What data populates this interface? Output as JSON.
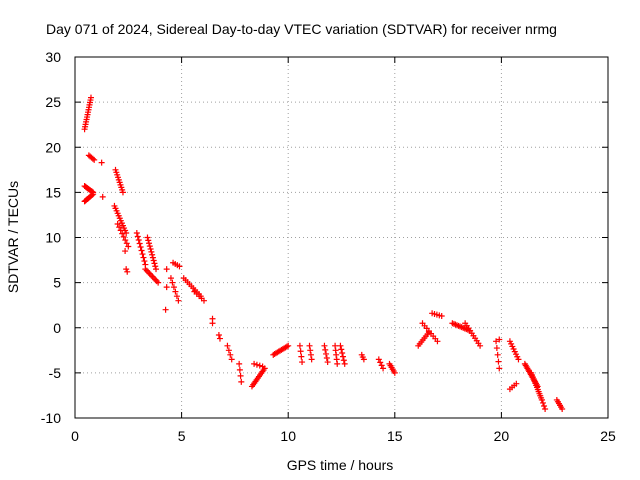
{
  "chart_data": {
    "type": "scatter",
    "title": "Day 071 of 2024, Sidereal Day-to-day VTEC variation (SDTVAR) for receiver nrmg",
    "xlabel": "GPS time / hours",
    "ylabel": "SDTVAR / TECUs",
    "xlim": [
      0,
      25
    ],
    "ylim": [
      -10,
      30
    ],
    "x_ticks": [
      0,
      5,
      10,
      15,
      20,
      25
    ],
    "y_ticks": [
      -10,
      -5,
      0,
      5,
      10,
      15,
      20,
      25,
      30
    ],
    "grid": true,
    "marker": "plus",
    "color": "#ff0000",
    "segments": [
      {
        "x0": 0.45,
        "x1": 0.75,
        "y0": 22.0,
        "y1": 25.5,
        "n": 14
      },
      {
        "x0": 0.45,
        "x1": 0.85,
        "y0": 14.0,
        "y1": 14.8,
        "n": 10
      },
      {
        "x0": 0.45,
        "x1": 0.85,
        "y0": 15.7,
        "y1": 15.0,
        "n": 10
      },
      {
        "x0": 0.65,
        "x1": 0.9,
        "y0": 19.1,
        "y1": 18.6,
        "n": 5
      },
      {
        "x0": 1.9,
        "x1": 2.25,
        "y0": 17.5,
        "y1": 15.0,
        "n": 10
      },
      {
        "x0": 1.85,
        "x1": 2.4,
        "y0": 13.5,
        "y1": 10.5,
        "n": 12
      },
      {
        "x0": 2.0,
        "x1": 2.5,
        "y0": 11.5,
        "y1": 9.0,
        "n": 8
      },
      {
        "x0": 2.9,
        "x1": 3.3,
        "y0": 10.5,
        "y1": 7.0,
        "n": 10
      },
      {
        "x0": 3.4,
        "x1": 3.8,
        "y0": 10.0,
        "y1": 6.5,
        "n": 12
      },
      {
        "x0": 3.3,
        "x1": 3.9,
        "y0": 6.5,
        "y1": 5.0,
        "n": 10
      },
      {
        "x0": 4.6,
        "x1": 4.9,
        "y0": 7.2,
        "y1": 6.8,
        "n": 4
      },
      {
        "x0": 4.5,
        "x1": 4.85,
        "y0": 5.5,
        "y1": 3.0,
        "n": 6
      },
      {
        "x0": 5.1,
        "x1": 5.9,
        "y0": 5.5,
        "y1": 3.5,
        "n": 10
      },
      {
        "x0": 5.6,
        "x1": 6.05,
        "y0": 4.0,
        "y1": 3.0,
        "n": 5
      },
      {
        "x0": 7.15,
        "x1": 7.35,
        "y0": -2.0,
        "y1": -3.5,
        "n": 4
      },
      {
        "x0": 7.7,
        "x1": 7.8,
        "y0": -4.0,
        "y1": -6.0,
        "n": 4
      },
      {
        "x0": 8.3,
        "x1": 8.9,
        "y0": -6.5,
        "y1": -4.5,
        "n": 12
      },
      {
        "x0": 8.4,
        "x1": 8.8,
        "y0": -4.0,
        "y1": -4.3,
        "n": 4
      },
      {
        "x0": 9.3,
        "x1": 10.0,
        "y0": -3.0,
        "y1": -2.0,
        "n": 12
      },
      {
        "x0": 10.55,
        "x1": 10.65,
        "y0": -2.0,
        "y1": -3.8,
        "n": 4
      },
      {
        "x0": 11.0,
        "x1": 11.1,
        "y0": -2.0,
        "y1": -3.5,
        "n": 4
      },
      {
        "x0": 11.7,
        "x1": 11.85,
        "y0": -2.0,
        "y1": -3.8,
        "n": 5
      },
      {
        "x0": 12.2,
        "x1": 12.3,
        "y0": -2.0,
        "y1": -4.0,
        "n": 5
      },
      {
        "x0": 12.45,
        "x1": 12.65,
        "y0": -2.0,
        "y1": -4.0,
        "n": 6
      },
      {
        "x0": 13.45,
        "x1": 13.55,
        "y0": -3.0,
        "y1": -3.5,
        "n": 3
      },
      {
        "x0": 14.25,
        "x1": 14.45,
        "y0": -3.5,
        "y1": -4.5,
        "n": 4
      },
      {
        "x0": 14.75,
        "x1": 15.0,
        "y0": -4.0,
        "y1": -5.0,
        "n": 6
      },
      {
        "x0": 16.1,
        "x1": 16.6,
        "y0": -2.0,
        "y1": -0.5,
        "n": 8
      },
      {
        "x0": 16.3,
        "x1": 17.0,
        "y0": 0.5,
        "y1": -1.5,
        "n": 8
      },
      {
        "x0": 16.75,
        "x1": 17.2,
        "y0": 1.6,
        "y1": 1.3,
        "n": 5
      },
      {
        "x0": 17.7,
        "x1": 18.5,
        "y0": 0.5,
        "y1": -0.3,
        "n": 12
      },
      {
        "x0": 18.3,
        "x1": 19.0,
        "y0": 0.5,
        "y1": -2.0,
        "n": 10
      },
      {
        "x0": 19.75,
        "x1": 19.9,
        "y0": -1.5,
        "y1": -4.5,
        "n": 5
      },
      {
        "x0": 20.4,
        "x1": 20.8,
        "y0": -1.5,
        "y1": -3.5,
        "n": 8
      },
      {
        "x0": 20.4,
        "x1": 20.7,
        "y0": -6.8,
        "y1": -6.2,
        "n": 4
      },
      {
        "x0": 21.1,
        "x1": 21.7,
        "y0": -4.0,
        "y1": -6.5,
        "n": 16
      },
      {
        "x0": 21.4,
        "x1": 21.9,
        "y0": -5.0,
        "y1": -8.0,
        "n": 14
      },
      {
        "x0": 21.9,
        "x1": 22.05,
        "y0": -8.0,
        "y1": -9.0,
        "n": 4
      },
      {
        "x0": 22.6,
        "x1": 22.85,
        "y0": -8.0,
        "y1": -9.0,
        "n": 6
      }
    ],
    "points": [
      {
        "x": 1.25,
        "y": 18.3
      },
      {
        "x": 1.3,
        "y": 14.5
      },
      {
        "x": 2.35,
        "y": 8.5
      },
      {
        "x": 2.4,
        "y": 6.5
      },
      {
        "x": 2.45,
        "y": 6.2
      },
      {
        "x": 4.3,
        "y": 6.5
      },
      {
        "x": 4.3,
        "y": 4.5
      },
      {
        "x": 4.25,
        "y": 2.0
      },
      {
        "x": 6.45,
        "y": 1.0
      },
      {
        "x": 6.45,
        "y": 0.5
      },
      {
        "x": 6.75,
        "y": -0.8
      },
      {
        "x": 6.8,
        "y": -1.2
      },
      {
        "x": 19.9,
        "y": -1.3
      }
    ]
  }
}
